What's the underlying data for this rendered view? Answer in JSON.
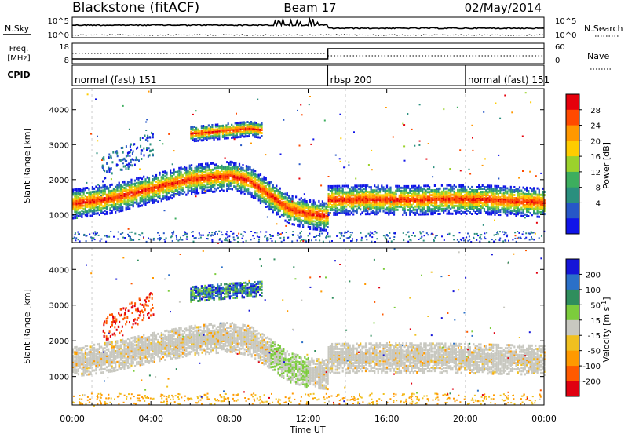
{
  "header": {
    "station": "Blackstone (fitACF)",
    "beam": "Beam 17",
    "date": "02/May/2014"
  },
  "noise_panel": {
    "left_label": "N.Sky",
    "right_label": "N.Search",
    "left_ticks": [
      "10^5",
      "10^0"
    ],
    "right_ticks": [
      "10^5",
      "10^0"
    ]
  },
  "freq_panel": {
    "left_label_1": "Freq.",
    "left_label_2": "[MHz]",
    "right_label": "Nave",
    "left_ticks": [
      "18",
      "8"
    ],
    "right_ticks": [
      "60",
      "0"
    ]
  },
  "cpid_panel": {
    "label": "CPID",
    "segments": [
      {
        "text": "normal (fast) 151",
        "start_hour": 0,
        "end_hour": 13
      },
      {
        "text": "rbsp 200",
        "start_hour": 13,
        "end_hour": 20
      },
      {
        "text": "normal (fast) 151",
        "start_hour": 20,
        "end_hour": 24
      }
    ]
  },
  "chart_data": [
    {
      "type": "heatmap",
      "quantity": "power",
      "ylabel": "Slant Range [km]",
      "ylim": [
        200,
        4600
      ],
      "yticks": [
        1000,
        2000,
        3000,
        4000
      ],
      "colorbar": {
        "label": "Power [dB]",
        "ticks": [
          "28",
          "24",
          "20",
          "16",
          "12",
          "8",
          "4"
        ],
        "colors": [
          "#e6000b",
          "#ff4a00",
          "#ff9800",
          "#ffcc00",
          "#9bd22c",
          "#3dae5e",
          "#2a8f7e",
          "#2757c7",
          "#1014e8"
        ]
      },
      "echo_bands": [
        {
          "range_km_by_hour": [
            [
              0,
              1350
            ],
            [
              2,
              1500
            ],
            [
              4,
              1780
            ],
            [
              6,
              2050
            ],
            [
              8,
              2150
            ],
            [
              9,
              2000
            ],
            [
              10,
              1600
            ],
            [
              11,
              1200
            ],
            [
              12,
              1050
            ],
            [
              13,
              1000
            ]
          ],
          "peak_db": 28
        },
        {
          "range_km_by_hour": [
            [
              13,
              1450
            ],
            [
              15,
              1470
            ],
            [
              17,
              1450
            ],
            [
              19,
              1480
            ],
            [
              21,
              1470
            ],
            [
              24,
              1380
            ]
          ],
          "peak_db": 28
        },
        {
          "range_km_by_hour": [
            [
              6,
              3350
            ],
            [
              7,
              3400
            ],
            [
              8,
              3450
            ],
            [
              9,
              3500
            ],
            [
              9.6,
              3450
            ]
          ],
          "peak_db": 28
        }
      ]
    },
    {
      "type": "heatmap",
      "quantity": "velocity",
      "ylabel": "Slant Range [km]",
      "xlabel": "Time UT",
      "ylim": [
        200,
        4600
      ],
      "yticks": [
        1000,
        2000,
        3000,
        4000
      ],
      "xticks": [
        "00:00",
        "04:00",
        "08:00",
        "12:00",
        "16:00",
        "20:00",
        "00:00"
      ],
      "colorbar": {
        "label": "Velocity [m s^-1]",
        "ticks": [
          "200",
          "100",
          "50",
          "15",
          "-15",
          "-50",
          "-100",
          "-200"
        ],
        "colors": [
          "#1515d8",
          "#2b70c8",
          "#2f8e5d",
          "#7ccc3c",
          "#c8c8c0",
          "#f0c020",
          "#ff9900",
          "#ff5a00",
          "#e00010"
        ]
      },
      "echo_bands": [
        {
          "range_km_by_hour": [
            [
              0,
              1450
            ],
            [
              2,
              1600
            ],
            [
              4,
              1850
            ],
            [
              6,
              2050
            ],
            [
              8,
              2150
            ],
            [
              9,
              2050
            ],
            [
              10,
              1700
            ],
            [
              11,
              1300
            ],
            [
              12,
              1150
            ],
            [
              13,
              1100
            ]
          ],
          "velocity": -10
        },
        {
          "range_km_by_hour": [
            [
              13,
              1550
            ],
            [
              16,
              1570
            ],
            [
              19,
              1560
            ],
            [
              24,
              1500
            ]
          ],
          "velocity": -10
        },
        {
          "range_km_by_hour": [
            [
              6,
              3350
            ],
            [
              8,
              3450
            ],
            [
              9.6,
              3500
            ]
          ],
          "velocity": 100
        }
      ]
    }
  ]
}
